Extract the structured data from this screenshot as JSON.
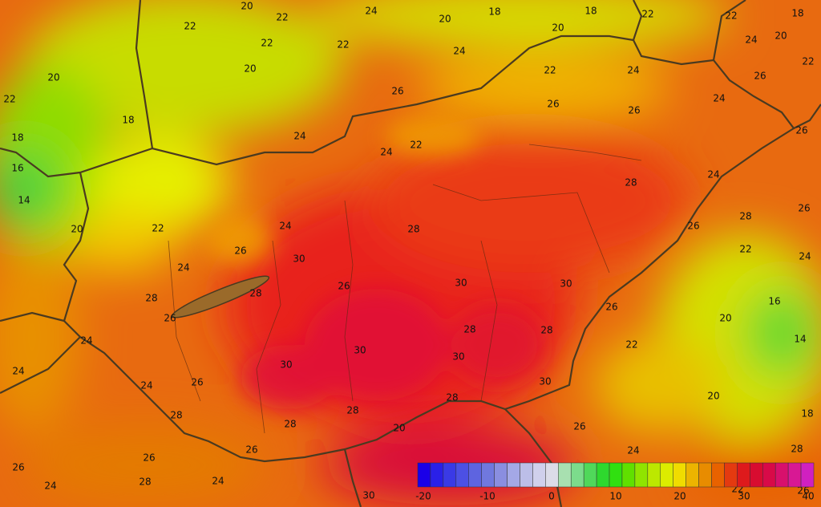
{
  "map": {
    "contour_labels": [
      22,
      20,
      24,
      20,
      18,
      18,
      22,
      22,
      18,
      22,
      20,
      22,
      18,
      18,
      16,
      14,
      20,
      20,
      22,
      22,
      24,
      20,
      24,
      20,
      22,
      26,
      22,
      24,
      26,
      24,
      26,
      26,
      22,
      24,
      24,
      26,
      24,
      28,
      28,
      26,
      26,
      22,
      24,
      22,
      24,
      28,
      26,
      24,
      30,
      28,
      28,
      26,
      30,
      30,
      26,
      26,
      16,
      20,
      14,
      24,
      28,
      28,
      22,
      30,
      30,
      30,
      24,
      26,
      24,
      30,
      20,
      28,
      28,
      28,
      18,
      28,
      26,
      20,
      26,
      24,
      28,
      26,
      26,
      24,
      28,
      24,
      30,
      22,
      26
    ],
    "colorbar": {
      "labels": [
        -20,
        -10,
        0,
        10,
        20,
        30,
        40
      ],
      "colors": [
        "#1a00e8",
        "#2a20e8",
        "#3a3ae6",
        "#4c50e4",
        "#5e64e0",
        "#7078de",
        "#8a8ee0",
        "#a4a8e6",
        "#bcbee8",
        "#d0d0ec",
        "#dcdce8",
        "#a8e0b0",
        "#7cdc8c",
        "#50d85a",
        "#2ed82e",
        "#30e010",
        "#60e000",
        "#90e400",
        "#bce800",
        "#dcec00",
        "#f0dc00",
        "#ecb400",
        "#e88c00",
        "#e86200",
        "#e43a10",
        "#de1a1c",
        "#d80c30",
        "#d80a48",
        "#d8106c",
        "#d81894",
        "#d020c0"
      ]
    }
  }
}
